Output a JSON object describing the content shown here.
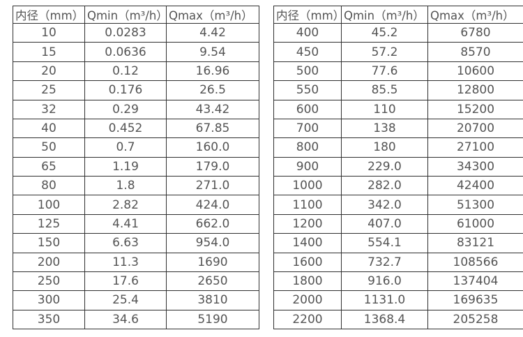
{
  "styles": {
    "border_color": "#2f2f2f",
    "text_color": "#545454",
    "background": "#ffffff"
  },
  "chart_data": [
    {
      "type": "table",
      "title": "",
      "columns": [
        "内径（mm）",
        "Qmin（m³/h）",
        "Qmax（m³/h）"
      ],
      "rows": [
        [
          "10",
          "0.0283",
          "4.42"
        ],
        [
          "15",
          "0.0636",
          "9.54"
        ],
        [
          "20",
          "0.12",
          "16.96"
        ],
        [
          "25",
          "0.176",
          "26.5"
        ],
        [
          "32",
          "0.29",
          "43.42"
        ],
        [
          "40",
          "0.452",
          "67.85"
        ],
        [
          "50",
          "0.7",
          "160.0"
        ],
        [
          "65",
          "1.19",
          "179.0"
        ],
        [
          "80",
          "1.8",
          "271.0"
        ],
        [
          "100",
          "2.82",
          "424.0"
        ],
        [
          "125",
          "4.41",
          "662.0"
        ],
        [
          "150",
          "6.63",
          "954.0"
        ],
        [
          "200",
          "11.3",
          "1690"
        ],
        [
          "250",
          "17.6",
          "2650"
        ],
        [
          "300",
          "25.4",
          "3810"
        ],
        [
          "350",
          "34.6",
          "5190"
        ]
      ]
    },
    {
      "type": "table",
      "title": "",
      "columns": [
        "内径（mm）",
        "Qmin（m³/h）",
        "Qmax（m³/h）"
      ],
      "rows": [
        [
          "400",
          "45.2",
          "6780"
        ],
        [
          "450",
          "57.2",
          "8570"
        ],
        [
          "500",
          "77.6",
          "10600"
        ],
        [
          "550",
          "85.5",
          "12800"
        ],
        [
          "600",
          "110",
          "15200"
        ],
        [
          "700",
          "138",
          "20700"
        ],
        [
          "800",
          "180",
          "27100"
        ],
        [
          "900",
          "229.0",
          "34300"
        ],
        [
          "1000",
          "282.0",
          "42400"
        ],
        [
          "1100",
          "342.0",
          "51300"
        ],
        [
          "1200",
          "407.0",
          "61000"
        ],
        [
          "1400",
          "554.1",
          "83121"
        ],
        [
          "1600",
          "732.7",
          "108566"
        ],
        [
          "1800",
          "916.0",
          "137404"
        ],
        [
          "2000",
          "1131.0",
          "169635"
        ],
        [
          "2200",
          "1368.4",
          "205258"
        ]
      ]
    }
  ]
}
